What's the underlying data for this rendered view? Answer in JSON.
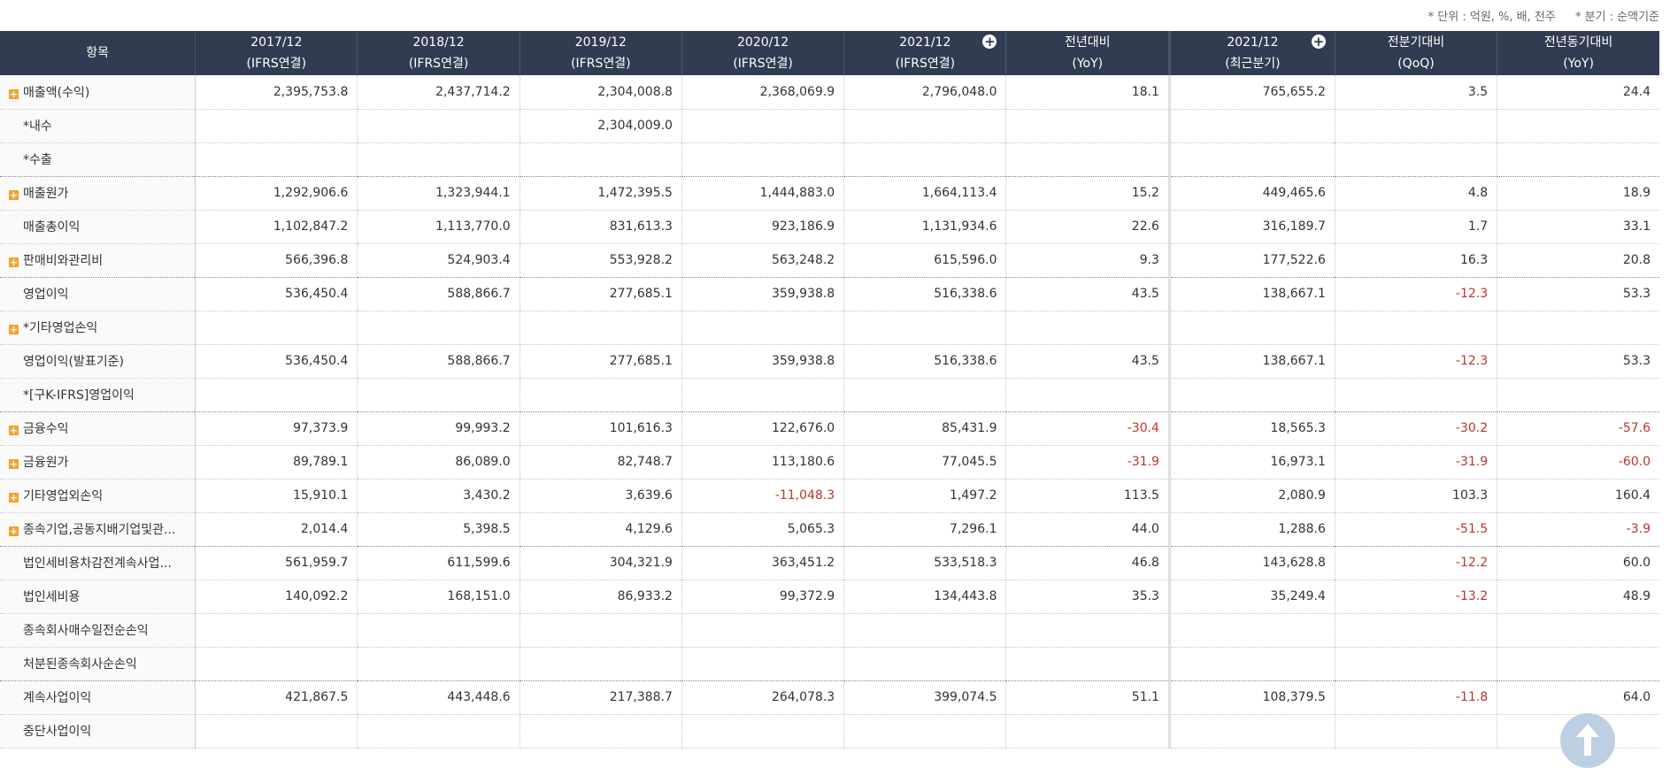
{
  "unit_note": {
    "unit": "* 단위 : 억원, %, 배, 천주",
    "quarter": "* 분기 : 순액기준"
  },
  "header": {
    "item": "항목",
    "columns": [
      {
        "l1": "2017/12",
        "l2": "(IFRS연결)",
        "plus": false
      },
      {
        "l1": "2018/12",
        "l2": "(IFRS연결)",
        "plus": false
      },
      {
        "l1": "2019/12",
        "l2": "(IFRS연결)",
        "plus": false
      },
      {
        "l1": "2020/12",
        "l2": "(IFRS연결)",
        "plus": false
      },
      {
        "l1": "2021/12",
        "l2": "(IFRS연결)",
        "plus": true
      },
      {
        "l1": "전년대비",
        "l2": "(YoY)",
        "plus": false
      },
      {
        "l1": "2021/12",
        "l2": "(최근분기)",
        "plus": true
      },
      {
        "l1": "전분기대비",
        "l2": "(QoQ)",
        "plus": false
      },
      {
        "l1": "전년동기대비",
        "l2": "(YoY)",
        "plus": false
      }
    ]
  },
  "rows": [
    {
      "label": "매출액(수익)",
      "exp": true,
      "vals": [
        "2,395,753.8",
        "2,437,714.2",
        "2,304,008.8",
        "2,368,069.9",
        "2,796,048.0",
        "18.1",
        "765,655.2",
        "3.5",
        "24.4"
      ]
    },
    {
      "label": "*내수",
      "exp": false,
      "vals": [
        "",
        "",
        "2,304,009.0",
        "",
        "",
        "",
        "",
        "",
        ""
      ]
    },
    {
      "label": "*수출",
      "exp": false,
      "groupEnd": true,
      "vals": [
        "",
        "",
        "",
        "",
        "",
        "",
        "",
        "",
        ""
      ]
    },
    {
      "label": "매출원가",
      "exp": true,
      "vals": [
        "1,292,906.6",
        "1,323,944.1",
        "1,472,395.5",
        "1,444,883.0",
        "1,664,113.4",
        "15.2",
        "449,465.6",
        "4.8",
        "18.9"
      ]
    },
    {
      "label": "매출총이익",
      "exp": false,
      "vals": [
        "1,102,847.2",
        "1,113,770.0",
        "831,613.3",
        "923,186.9",
        "1,131,934.6",
        "22.6",
        "316,189.7",
        "1.7",
        "33.1"
      ]
    },
    {
      "label": "판매비와관리비",
      "exp": true,
      "groupEnd": true,
      "vals": [
        "566,396.8",
        "524,903.4",
        "553,928.2",
        "563,248.2",
        "615,596.0",
        "9.3",
        "177,522.6",
        "16.3",
        "20.8"
      ]
    },
    {
      "label": "영업이익",
      "exp": false,
      "vals": [
        "536,450.4",
        "588,866.7",
        "277,685.1",
        "359,938.8",
        "516,338.6",
        "43.5",
        "138,667.1",
        "-12.3",
        "53.3"
      ]
    },
    {
      "label": "*기타영업손익",
      "exp": true,
      "vals": [
        "",
        "",
        "",
        "",
        "",
        "",
        "",
        "",
        ""
      ]
    },
    {
      "label": "영업이익(발표기준)",
      "exp": false,
      "vals": [
        "536,450.4",
        "588,866.7",
        "277,685.1",
        "359,938.8",
        "516,338.6",
        "43.5",
        "138,667.1",
        "-12.3",
        "53.3"
      ]
    },
    {
      "label": "*[구K-IFRS]영업이익",
      "exp": false,
      "groupEnd": true,
      "vals": [
        "",
        "",
        "",
        "",
        "",
        "",
        "",
        "",
        ""
      ]
    },
    {
      "label": "금융수익",
      "exp": true,
      "vals": [
        "97,373.9",
        "99,993.2",
        "101,616.3",
        "122,676.0",
        "85,431.9",
        "-30.4",
        "18,565.3",
        "-30.2",
        "-57.6"
      ]
    },
    {
      "label": "금융원가",
      "exp": true,
      "vals": [
        "89,789.1",
        "86,089.0",
        "82,748.7",
        "113,180.6",
        "77,045.5",
        "-31.9",
        "16,973.1",
        "-31.9",
        "-60.0"
      ]
    },
    {
      "label": "기타영업외손익",
      "exp": true,
      "vals": [
        "15,910.1",
        "3,430.2",
        "3,639.6",
        "-11,048.3",
        "1,497.2",
        "113.5",
        "2,080.9",
        "103.3",
        "160.4"
      ]
    },
    {
      "label": "종속기업,공동지배기업및관...",
      "exp": true,
      "groupEnd": true,
      "vals": [
        "2,014.4",
        "5,398.5",
        "4,129.6",
        "5,065.3",
        "7,296.1",
        "44.0",
        "1,288.6",
        "-51.5",
        "-3.9"
      ]
    },
    {
      "label": "법인세비용차감전계속사업...",
      "exp": false,
      "vals": [
        "561,959.7",
        "611,599.6",
        "304,321.9",
        "363,451.2",
        "533,518.3",
        "46.8",
        "143,628.8",
        "-12.2",
        "60.0"
      ]
    },
    {
      "label": "법인세비용",
      "exp": false,
      "vals": [
        "140,092.2",
        "168,151.0",
        "86,933.2",
        "99,372.9",
        "134,443.8",
        "35.3",
        "35,249.4",
        "-13.2",
        "48.9"
      ]
    },
    {
      "label": "종속회사매수일전순손익",
      "exp": false,
      "vals": [
        "",
        "",
        "",
        "",
        "",
        "",
        "",
        "",
        ""
      ]
    },
    {
      "label": "처분된종속회사순손익",
      "exp": false,
      "groupEnd": true,
      "vals": [
        "",
        "",
        "",
        "",
        "",
        "",
        "",
        "",
        ""
      ]
    },
    {
      "label": "계속사업이익",
      "exp": false,
      "vals": [
        "421,867.5",
        "443,448.6",
        "217,388.7",
        "264,078.3",
        "399,074.5",
        "51.1",
        "108,379.5",
        "-11.8",
        "64.0"
      ]
    },
    {
      "label": "중단사업이익",
      "exp": false,
      "vals": [
        "",
        "",
        "",
        "",
        "",
        "",
        "",
        "",
        ""
      ]
    }
  ],
  "colors": {
    "header_bg": "#313c52",
    "negative": "#c0342a",
    "expand_icon": "#f3a22c",
    "scroll_top": "#b6cbe0"
  },
  "icons": {
    "expand": "plus-square-icon",
    "column_expand": "plus-circle-icon",
    "scroll_top": "arrow-up-icon"
  }
}
